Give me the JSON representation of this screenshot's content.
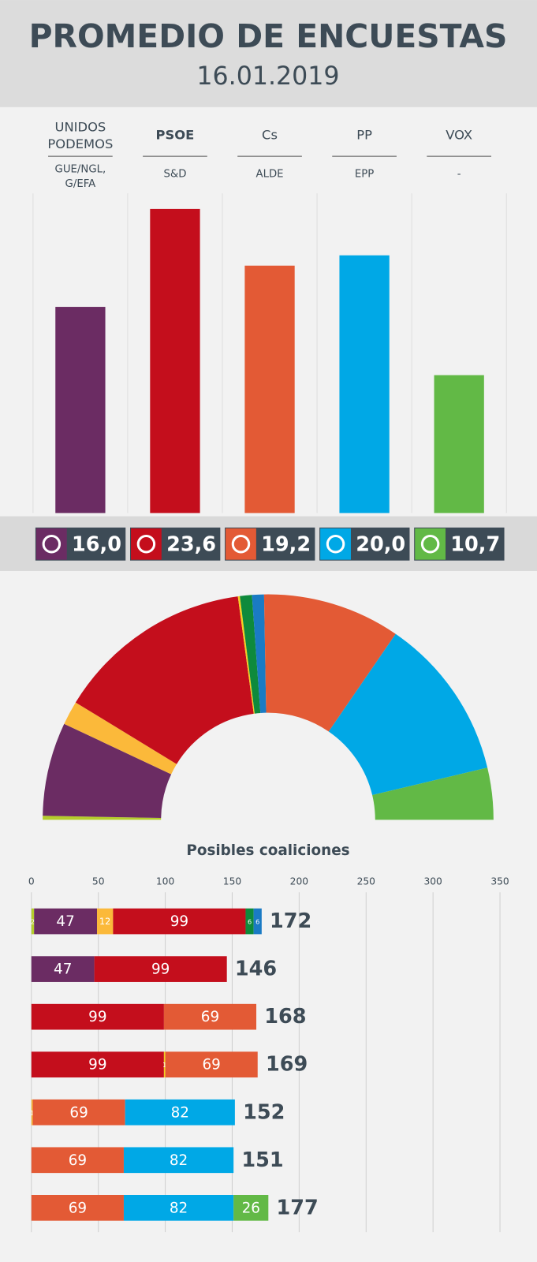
{
  "header": {
    "title": "PROMEDIO DE ENCUESTAS",
    "date": "16.01.2019"
  },
  "chart_data": [
    {
      "type": "bar",
      "categories": [
        "UNIDOS PODEMOS",
        "PSOE",
        "Cs",
        "PP",
        "VOX"
      ],
      "groups": [
        "GUE/NGL, G/EFA",
        "S&D",
        "ALDE",
        "EPP",
        "-"
      ],
      "values": [
        16.0,
        23.6,
        19.2,
        20.0,
        10.7
      ],
      "value_labels": [
        "16,0",
        "23,6",
        "19,2",
        "20,0",
        "10,7"
      ],
      "colors": [
        "#6b2c63",
        "#c40e1c",
        "#e35a35",
        "#00a8e6",
        "#62b946"
      ],
      "highlight": 1
    },
    {
      "type": "half_donut",
      "values": [
        2,
        47,
        12,
        99,
        1,
        6,
        6,
        69,
        82,
        26
      ],
      "colors": [
        "#b5cc2c",
        "#6b2c63",
        "#fbb93a",
        "#c40e1c",
        "#f5d020",
        "#0e8a3c",
        "#1a7bc4",
        "#e35a35",
        "#00a8e6",
        "#62b946"
      ]
    },
    {
      "type": "stacked_bar",
      "title": "Posibles coaliciones",
      "xlim": [
        0,
        350
      ],
      "xticks": [
        0,
        50,
        100,
        150,
        200,
        250,
        300,
        350
      ],
      "grid": true,
      "rows": [
        {
          "segments": [
            {
              "value": 2,
              "color": "#b5cc2c"
            },
            {
              "value": 47,
              "color": "#6b2c63"
            },
            {
              "value": 12,
              "color": "#fbb93a"
            },
            {
              "value": 99,
              "color": "#c40e1c"
            },
            {
              "value": 6,
              "color": "#0e8a3c"
            },
            {
              "value": 6,
              "color": "#1a7bc4"
            }
          ],
          "total": 172
        },
        {
          "segments": [
            {
              "value": 47,
              "color": "#6b2c63"
            },
            {
              "value": 99,
              "color": "#c40e1c"
            }
          ],
          "total": 146
        },
        {
          "segments": [
            {
              "value": 99,
              "color": "#c40e1c"
            },
            {
              "value": 69,
              "color": "#e35a35"
            }
          ],
          "total": 168
        },
        {
          "segments": [
            {
              "value": 99,
              "color": "#c40e1c"
            },
            {
              "value": 1,
              "color": "#f5d020"
            },
            {
              "value": 69,
              "color": "#e35a35"
            }
          ],
          "total": 169
        },
        {
          "segments": [
            {
              "value": 1,
              "color": "#fbb93a"
            },
            {
              "value": 69,
              "color": "#e35a35"
            },
            {
              "value": 82,
              "color": "#00a8e6"
            }
          ],
          "total": 152
        },
        {
          "segments": [
            {
              "value": 69,
              "color": "#e35a35"
            },
            {
              "value": 82,
              "color": "#00a8e6"
            }
          ],
          "total": 151
        },
        {
          "segments": [
            {
              "value": 69,
              "color": "#e35a35"
            },
            {
              "value": 82,
              "color": "#00a8e6"
            },
            {
              "value": 26,
              "color": "#62b946"
            }
          ],
          "total": 177
        }
      ]
    }
  ]
}
